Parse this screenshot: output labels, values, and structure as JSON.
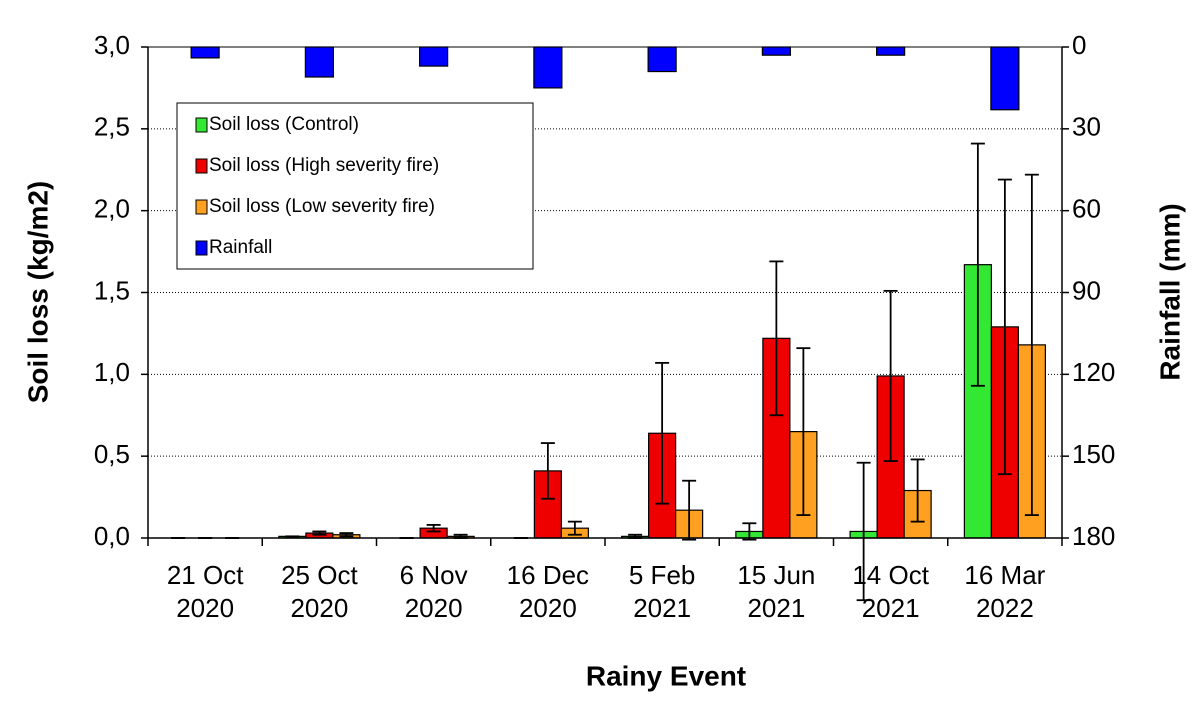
{
  "chart_data": {
    "type": "bar",
    "x_label": "Rainy Event",
    "y_label": "Soil loss (kg/m2)",
    "y2_label": "Rainfall (mm)",
    "categories": [
      [
        "21 Oct",
        "2020"
      ],
      [
        "25 Oct",
        "2020"
      ],
      [
        "6 Nov",
        "2020"
      ],
      [
        "16 Dec",
        "2020"
      ],
      [
        "5 Feb",
        "2021"
      ],
      [
        "15 Jun",
        "2021"
      ],
      [
        "14 Oct",
        "2021"
      ],
      [
        "16 Mar",
        "2022"
      ]
    ],
    "series": [
      {
        "name": "Soil loss (Control)",
        "color": "#33e833",
        "values": [
          0,
          0.01,
          0,
          0,
          0.01,
          0.04,
          0.04,
          1.67
        ],
        "errors": [
          0,
          0,
          0,
          0,
          0.01,
          0.05,
          0.42,
          0.74
        ]
      },
      {
        "name": "Soil loss (High severity fire)",
        "color": "#ee0000",
        "values": [
          0,
          0.03,
          0.06,
          0.41,
          0.64,
          1.22,
          0.99,
          1.29
        ],
        "errors": [
          0,
          0.01,
          0.02,
          0.17,
          0.43,
          0.47,
          0.52,
          0.9
        ]
      },
      {
        "name": "Soil loss (Low severity fire)",
        "color": "#ffa020",
        "values": [
          0,
          0.02,
          0.01,
          0.06,
          0.17,
          0.65,
          0.29,
          1.18
        ],
        "errors": [
          0,
          0.01,
          0.01,
          0.04,
          0.18,
          0.51,
          0.19,
          1.04
        ]
      },
      {
        "name": "Rainfall",
        "color": "#0000ff",
        "axis": "y2",
        "values": [
          4,
          11,
          7,
          15,
          9,
          3,
          3,
          23
        ]
      }
    ],
    "ylim": [
      0,
      3
    ],
    "yticks": [
      {
        "value": 0,
        "label": "0,0"
      },
      {
        "value": 0.5,
        "label": "0,5"
      },
      {
        "value": 1,
        "label": "1,0"
      },
      {
        "value": 1.5,
        "label": "1,5"
      },
      {
        "value": 2,
        "label": "2,0"
      },
      {
        "value": 2.5,
        "label": "2,5"
      },
      {
        "value": 3,
        "label": "3,0"
      }
    ],
    "y2lim": [
      180,
      0
    ],
    "y2ticks": [
      0,
      30,
      60,
      90,
      120,
      150,
      180
    ],
    "grid": true,
    "legend": "upper left"
  }
}
